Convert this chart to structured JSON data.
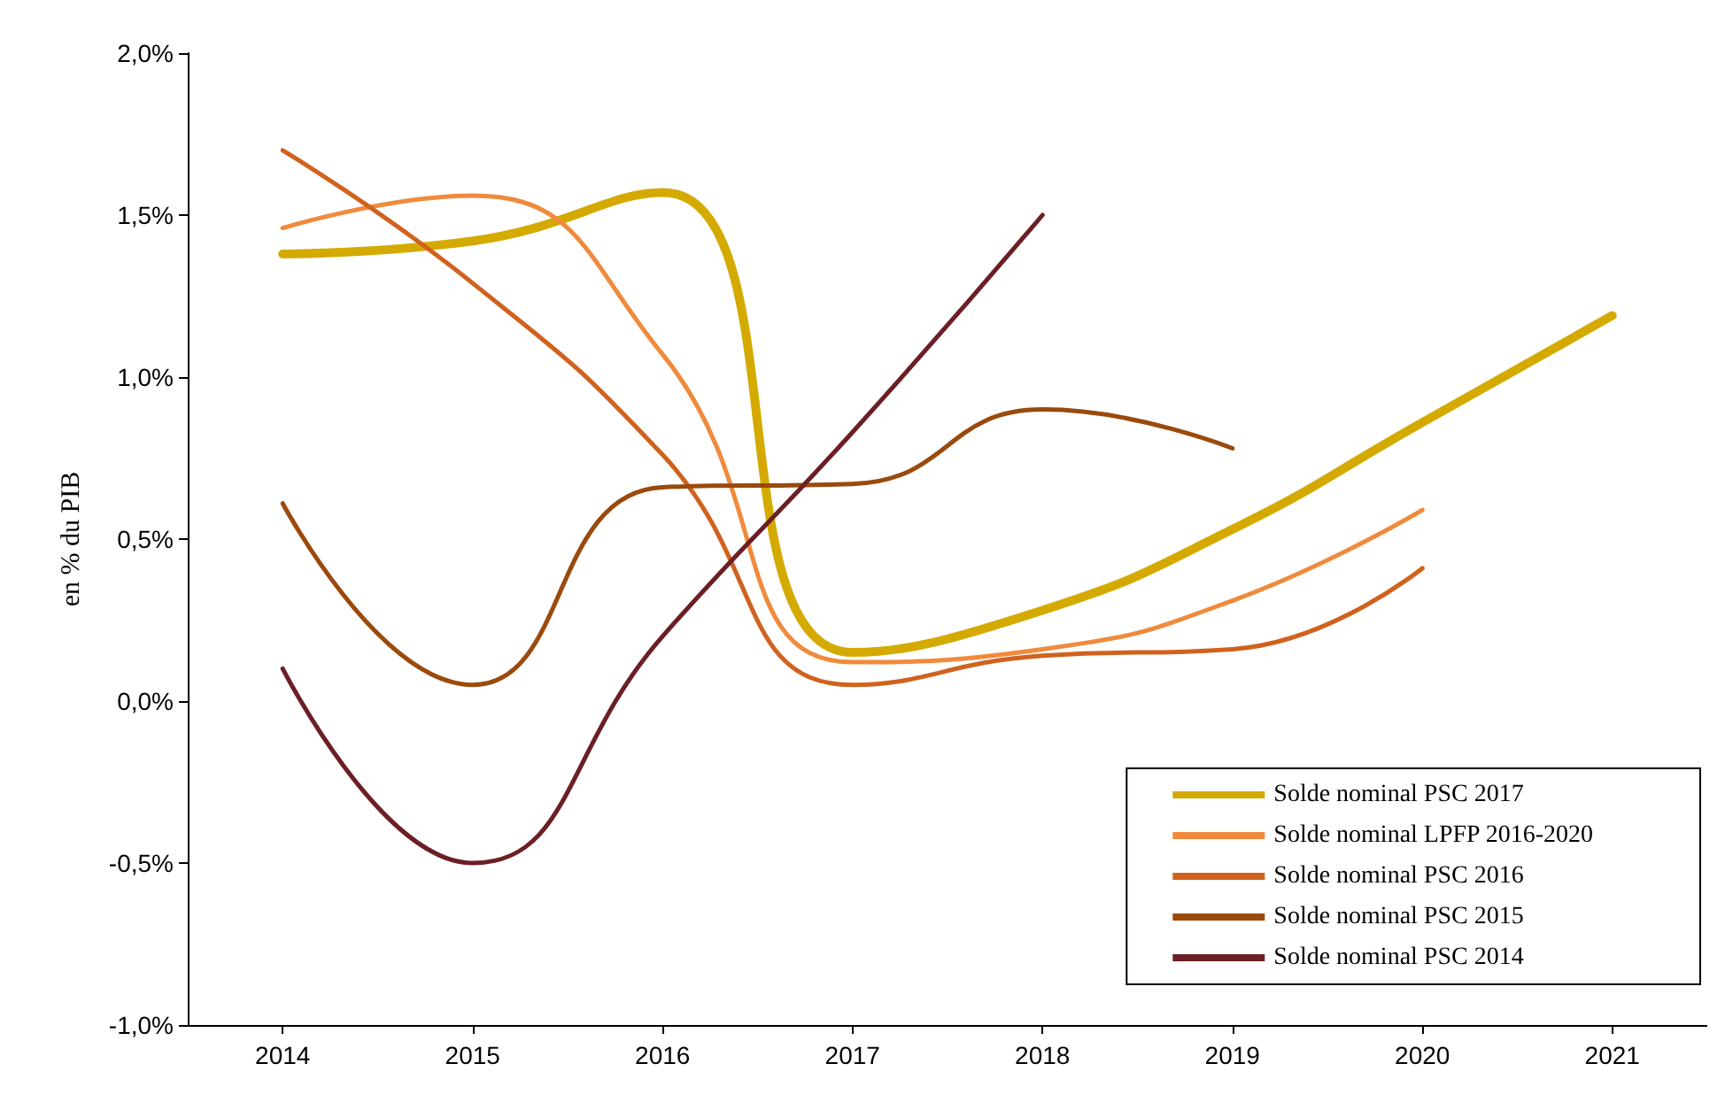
{
  "chart_data": {
    "type": "line",
    "ylabel": "en % du PIB",
    "categories": [
      "2014",
      "2015",
      "2016",
      "2017",
      "2018",
      "2019",
      "2020",
      "2021"
    ],
    "series": [
      {
        "name": "Solde nominal PSC 2017",
        "color": "#d4aa00",
        "values": [
          1.38,
          1.42,
          1.57,
          0.15,
          0.28,
          0.53,
          0.86,
          1.19
        ]
      },
      {
        "name": "Solde nominal LPFP 2016-2020",
        "color": "#f08a3c",
        "values": [
          1.46,
          1.56,
          1.07,
          0.12,
          0.16,
          0.31,
          0.59,
          null
        ]
      },
      {
        "name": "Solde nominal PSC 2016",
        "color": "#d0621e",
        "values": [
          1.7,
          1.29,
          0.76,
          0.05,
          0.14,
          0.16,
          0.41,
          null
        ]
      },
      {
        "name": "Solde nominal PSC 2015",
        "color": "#9a4a0c",
        "values": [
          0.61,
          0.05,
          0.66,
          0.67,
          0.9,
          0.78,
          null,
          null
        ]
      },
      {
        "name": "Solde nominal PSC 2014",
        "color": "#6b1f24",
        "values": [
          0.1,
          -0.5,
          0.2,
          0.83,
          1.5,
          null,
          null,
          null
        ]
      }
    ],
    "ylim": [
      -1,
      2
    ],
    "yticks": [
      {
        "value": -1,
        "label": "-1,0%"
      },
      {
        "value": -0.5,
        "label": "-0,5%"
      },
      {
        "value": 0,
        "label": "0,0%"
      },
      {
        "value": 0.5,
        "label": "0,5%"
      },
      {
        "value": 1,
        "label": "1,0%"
      },
      {
        "value": 1.5,
        "label": "1,5%"
      },
      {
        "value": 2,
        "label": "2,0%"
      }
    ],
    "grid": false,
    "legend": "bottom right",
    "marker": "none",
    "line_style": "solid"
  }
}
